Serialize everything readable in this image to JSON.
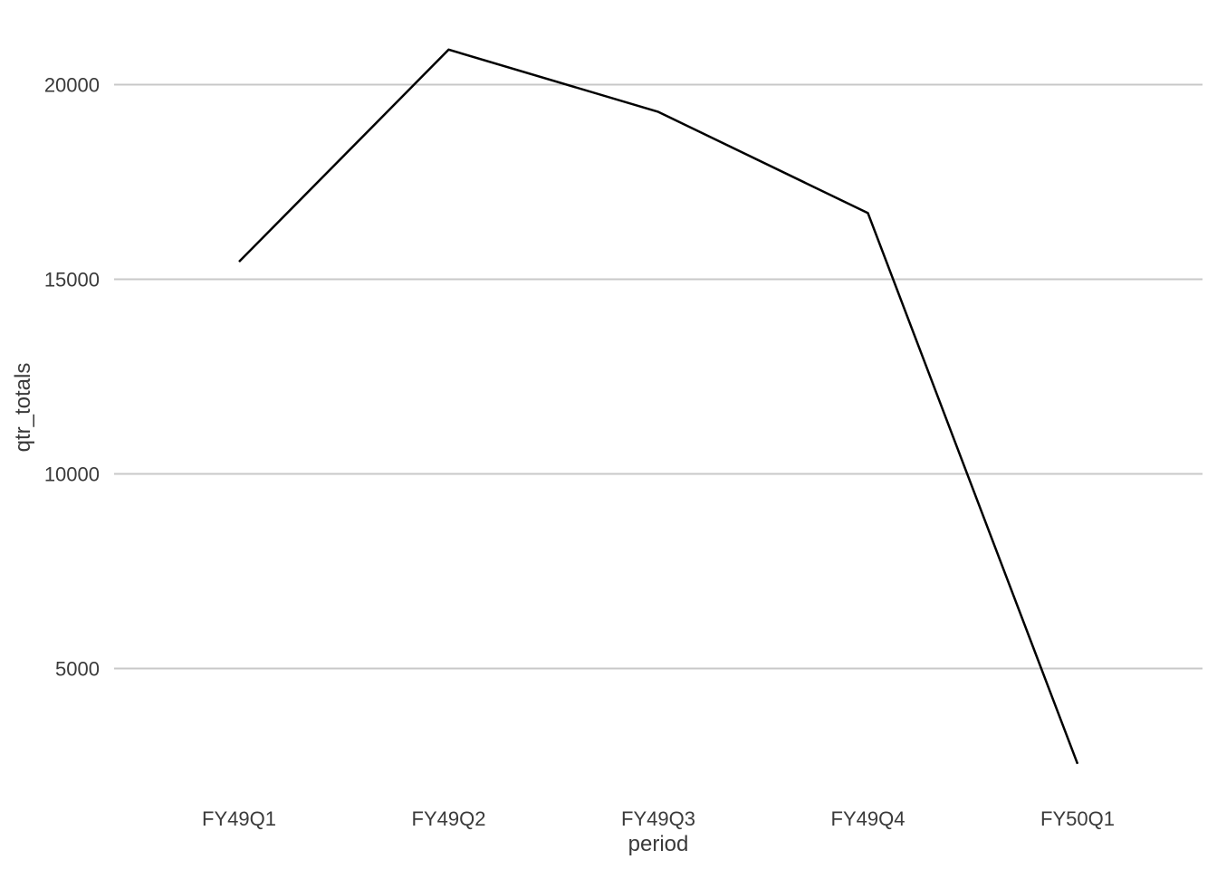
{
  "chart_data": {
    "type": "line",
    "title": "",
    "xlabel": "period",
    "ylabel": "qtr_totals",
    "categories": [
      "FY49Q1",
      "FY49Q2",
      "FY49Q3",
      "FY49Q4",
      "FY50Q1"
    ],
    "series": [
      {
        "values": [
          15450,
          20900,
          19300,
          16700,
          2550
        ]
      }
    ],
    "ylim": [
      2000,
      21000
    ],
    "yticks": [
      5000,
      10000,
      15000,
      20000
    ],
    "grid": "horizontal-major",
    "legend": "none",
    "colors": {
      "line": "#000000",
      "grid": "#c8c8c8",
      "text": "#3a3a3a",
      "background": "#ffffff"
    }
  }
}
